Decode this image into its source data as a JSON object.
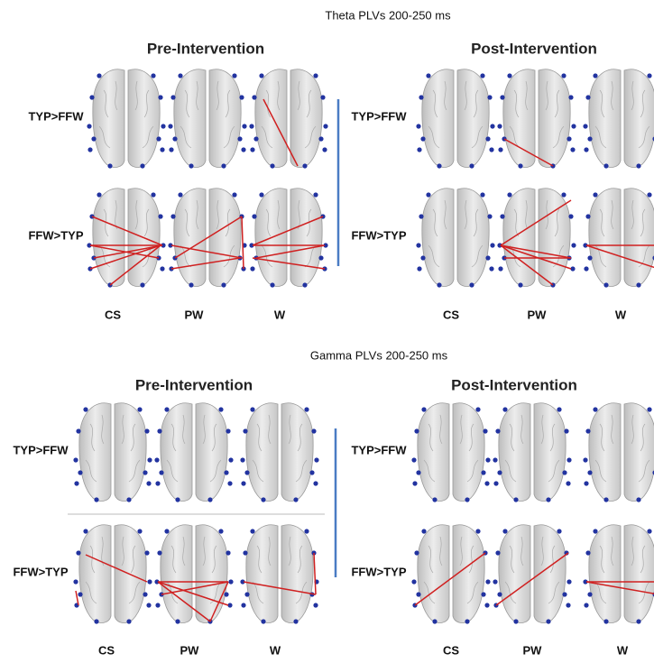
{
  "sections": [
    {
      "title": "Theta PLVs 200-250 ms",
      "panels": [
        {
          "header": "Pre-Intervention",
          "rows": [
            "TYP>FFW",
            "FFW>TYP"
          ],
          "columns": [
            "CS",
            "PW",
            "W"
          ]
        },
        {
          "header": "Post-Intervention",
          "rows": [
            "TYP>FFW",
            "FFW>TYP"
          ],
          "columns": [
            "CS",
            "PW",
            "W"
          ]
        }
      ]
    },
    {
      "title": "Gamma PLVs 200-250 ms",
      "panels": [
        {
          "header": "Pre-Intervention",
          "rows": [
            "TYP>FFW",
            "FFW>TYP"
          ],
          "columns": [
            "CS",
            "PW",
            "W"
          ]
        },
        {
          "header": "Post-Intervention",
          "rows": [
            "TYP>FFW",
            "FFW>TYP"
          ],
          "columns": [
            "CS",
            "PW",
            "W"
          ]
        }
      ]
    }
  ]
}
